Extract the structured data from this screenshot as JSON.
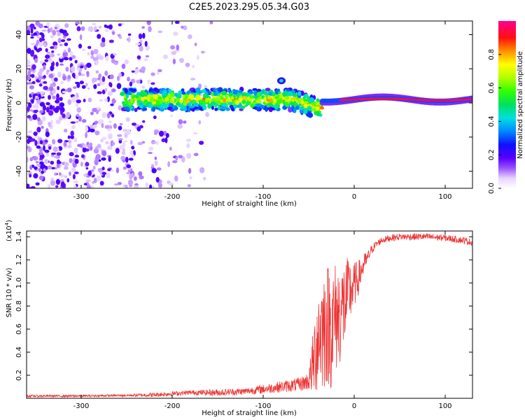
{
  "title": "C2E5.2023.295.05.34.G03",
  "chart_data": [
    {
      "type": "heatmap",
      "xlabel": "Height of straight line (km)",
      "ylabel": "Frequency (Hz)",
      "xlim": [
        -360,
        130
      ],
      "ylim": [
        -50,
        48
      ],
      "xticks": [
        -300,
        -200,
        -100,
        0,
        100
      ],
      "yticks": [
        -40,
        -20,
        0,
        20,
        40
      ],
      "grid": false,
      "colorbar": {
        "label": "Normalized spectral amplitude",
        "range": [
          0,
          1
        ],
        "ticks": [
          0.0,
          0.2,
          0.4,
          0.6,
          0.8
        ]
      },
      "features": [
        {
          "description": "scattered noise",
          "x_range": [
            -360,
            -150
          ],
          "y_range": [
            -50,
            48
          ],
          "amplitude": 0.1
        },
        {
          "description": "carrier band",
          "x_range": [
            -255,
            -35
          ],
          "center_freq": 2,
          "spread": 6,
          "amplitude": 0.5
        },
        {
          "description": "strong carrier",
          "x_range": [
            -35,
            130
          ],
          "center_freq": 2,
          "spread": 2,
          "amplitude": 1.0
        },
        {
          "description": "isolated blob",
          "x": -80,
          "freq": 13,
          "amplitude": 0.45
        }
      ]
    },
    {
      "type": "line",
      "xlabel": "Height of straight line (km)",
      "ylabel": "SNR (10 * v/v)",
      "scale_label": "(x10",
      "scale_exp": "4",
      "scale_close": ")",
      "xlim": [
        -360,
        130
      ],
      "ylim": [
        0.0,
        1.45
      ],
      "xticks": [
        -300,
        -200,
        -100,
        0,
        100
      ],
      "yticks": [
        0.2,
        0.4,
        0.6,
        0.8,
        1.0,
        1.2,
        1.4
      ],
      "grid": false,
      "series": [
        {
          "color": "#ee3333",
          "x": [
            -360,
            -300,
            -250,
            -220,
            -200,
            -180,
            -150,
            -120,
            -100,
            -80,
            -60,
            -50,
            -45,
            -40,
            -35,
            -30,
            -25,
            -20,
            -15,
            -10,
            -5,
            0,
            5,
            10,
            15,
            20,
            25,
            30,
            40,
            50,
            60,
            80,
            100,
            120,
            130
          ],
          "values": [
            0.02,
            0.02,
            0.025,
            0.03,
            0.04,
            0.05,
            0.05,
            0.06,
            0.08,
            0.1,
            0.12,
            0.15,
            0.3,
            0.55,
            0.6,
            0.65,
            0.62,
            0.7,
            0.75,
            0.82,
            0.92,
            0.98,
            1.05,
            1.15,
            1.22,
            1.3,
            1.34,
            1.37,
            1.39,
            1.4,
            1.4,
            1.4,
            1.39,
            1.37,
            1.35
          ],
          "noise": [
            0.01,
            0.01,
            0.01,
            0.02,
            0.02,
            0.02,
            0.03,
            0.03,
            0.04,
            0.05,
            0.06,
            0.08,
            0.3,
            0.5,
            0.55,
            0.55,
            0.55,
            0.5,
            0.45,
            0.4,
            0.3,
            0.2,
            0.15,
            0.1,
            0.06,
            0.04,
            0.03,
            0.03,
            0.03,
            0.03,
            0.03,
            0.03,
            0.03,
            0.03,
            0.03
          ]
        }
      ]
    }
  ]
}
